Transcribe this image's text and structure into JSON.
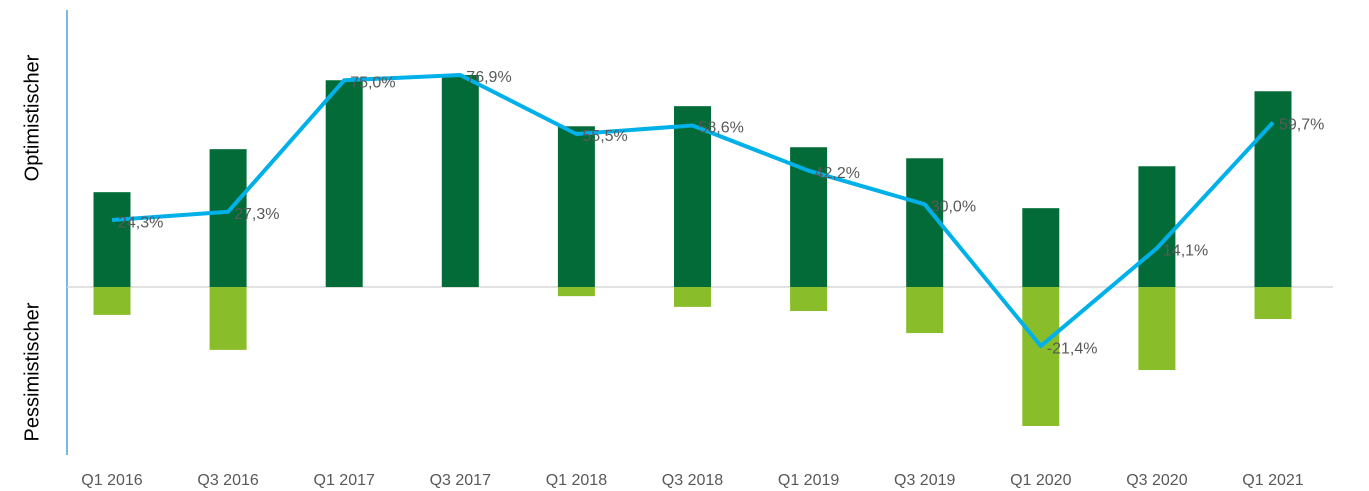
{
  "chart_data": {
    "type": "bar",
    "y_label_top": "Optimistischer",
    "y_label_bottom": "Pessimistischer",
    "categories": [
      "Q1 2016",
      "Q3 2016",
      "Q1 2017",
      "Q3 2017",
      "Q1 2018",
      "Q3 2018",
      "Q1 2019",
      "Q3 2019",
      "Q1 2020",
      "Q3 2020",
      "Q1 2021"
    ],
    "series": [
      {
        "type": "bar",
        "color": "#036b38",
        "values": [
          34.4,
          50.0,
          75.0,
          76.9,
          58.3,
          65.6,
          50.7,
          46.7,
          28.6,
          43.8,
          71.0
        ]
      },
      {
        "type": "bar",
        "color": "#8abd2a",
        "values": [
          -10.1,
          -22.8,
          0,
          0,
          -3.3,
          -7.2,
          -8.7,
          -16.7,
          -50.4,
          -30.1,
          -11.6
        ]
      },
      {
        "type": "line",
        "color": "#00b0e8",
        "values": [
          24.3,
          27.3,
          75.0,
          76.9,
          55.5,
          58.6,
          42.2,
          30.0,
          -21.4,
          14.1,
          59.7
        ],
        "value_labels": [
          "24,3%",
          "27,3%",
          "75,0%",
          "76,9%",
          "55,5%",
          "58,6%",
          "42,2%",
          "30,0%",
          "-21,4%",
          "14,1%",
          "59,7%"
        ]
      }
    ]
  }
}
